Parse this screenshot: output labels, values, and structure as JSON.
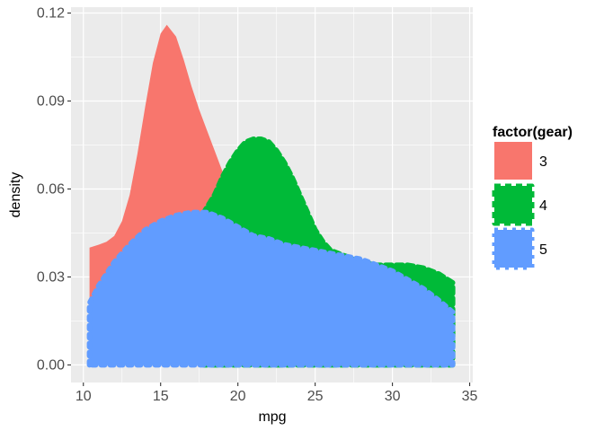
{
  "chart_data": {
    "type": "area",
    "title": "",
    "xlabel": "mpg",
    "ylabel": "density",
    "xlim": [
      9.2,
      35.2
    ],
    "ylim": [
      -0.006,
      0.122
    ],
    "xticks": [
      10,
      15,
      20,
      25,
      30,
      35
    ],
    "yticks": [
      0.0,
      0.03,
      0.06,
      0.09,
      0.12
    ],
    "ytick_labels": [
      "0.00",
      "0.03",
      "0.06",
      "0.09",
      "0.12"
    ],
    "grid": true,
    "legend": {
      "title": "factor(gear)",
      "placement": "right"
    },
    "series": [
      {
        "name": "3",
        "color": "#F8766D",
        "x": [
          10.4,
          11.0,
          11.5,
          12.0,
          12.5,
          13.0,
          13.5,
          14.0,
          14.5,
          15.0,
          15.4,
          16.0,
          16.5,
          17.0,
          17.5,
          18.0,
          18.5,
          19.0,
          19.5,
          20.0,
          20.5,
          21.0,
          21.5
        ],
        "y": [
          0.04,
          0.041,
          0.042,
          0.044,
          0.049,
          0.058,
          0.072,
          0.088,
          0.103,
          0.113,
          0.116,
          0.112,
          0.104,
          0.095,
          0.087,
          0.08,
          0.073,
          0.066,
          0.058,
          0.05,
          0.041,
          0.031,
          0.02
        ]
      },
      {
        "name": "4",
        "color": "#00BA38",
        "x": [
          17.8,
          18.5,
          19.0,
          19.5,
          20.0,
          20.5,
          21.0,
          21.5,
          22.0,
          22.5,
          23.0,
          23.5,
          24.0,
          24.5,
          25.0,
          25.5,
          26.0,
          27.0,
          28.0,
          29.0,
          30.0,
          31.0,
          32.0,
          33.0,
          33.9
        ],
        "y": [
          0.052,
          0.058,
          0.064,
          0.069,
          0.073,
          0.076,
          0.077,
          0.077,
          0.076,
          0.073,
          0.069,
          0.064,
          0.058,
          0.052,
          0.046,
          0.042,
          0.039,
          0.037,
          0.035,
          0.034,
          0.034,
          0.034,
          0.033,
          0.031,
          0.028
        ]
      },
      {
        "name": "5",
        "color": "#619CFF",
        "x": [
          10.4,
          11.0,
          12.0,
          13.0,
          14.0,
          15.0,
          16.0,
          17.0,
          18.0,
          19.0,
          20.0,
          21.0,
          22.0,
          23.0,
          24.0,
          25.0,
          26.0,
          27.0,
          28.0,
          29.0,
          30.0,
          31.0,
          32.0,
          33.0,
          33.9
        ],
        "y": [
          0.021,
          0.027,
          0.035,
          0.041,
          0.046,
          0.049,
          0.051,
          0.052,
          0.052,
          0.05,
          0.047,
          0.044,
          0.043,
          0.041,
          0.04,
          0.039,
          0.038,
          0.037,
          0.036,
          0.034,
          0.032,
          0.029,
          0.026,
          0.022,
          0.018
        ]
      }
    ]
  }
}
